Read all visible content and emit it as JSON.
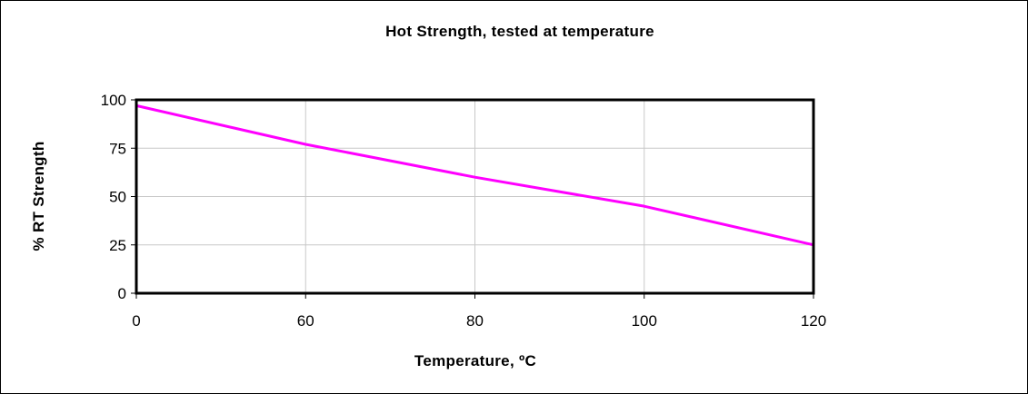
{
  "chart_data": {
    "type": "line",
    "title": "Hot Strength, tested at temperature",
    "xlabel": "Temperature, ºC",
    "ylabel": "% RT Strength",
    "categories": [
      "0",
      "60",
      "80",
      "100",
      "120"
    ],
    "series": [
      {
        "values": [
          97,
          77,
          60,
          45,
          25
        ],
        "color": "#ff00ff"
      }
    ],
    "ylim": [
      0,
      100
    ],
    "yticks": [
      0,
      25,
      50,
      75,
      100
    ],
    "grid": true,
    "legend": "none"
  }
}
